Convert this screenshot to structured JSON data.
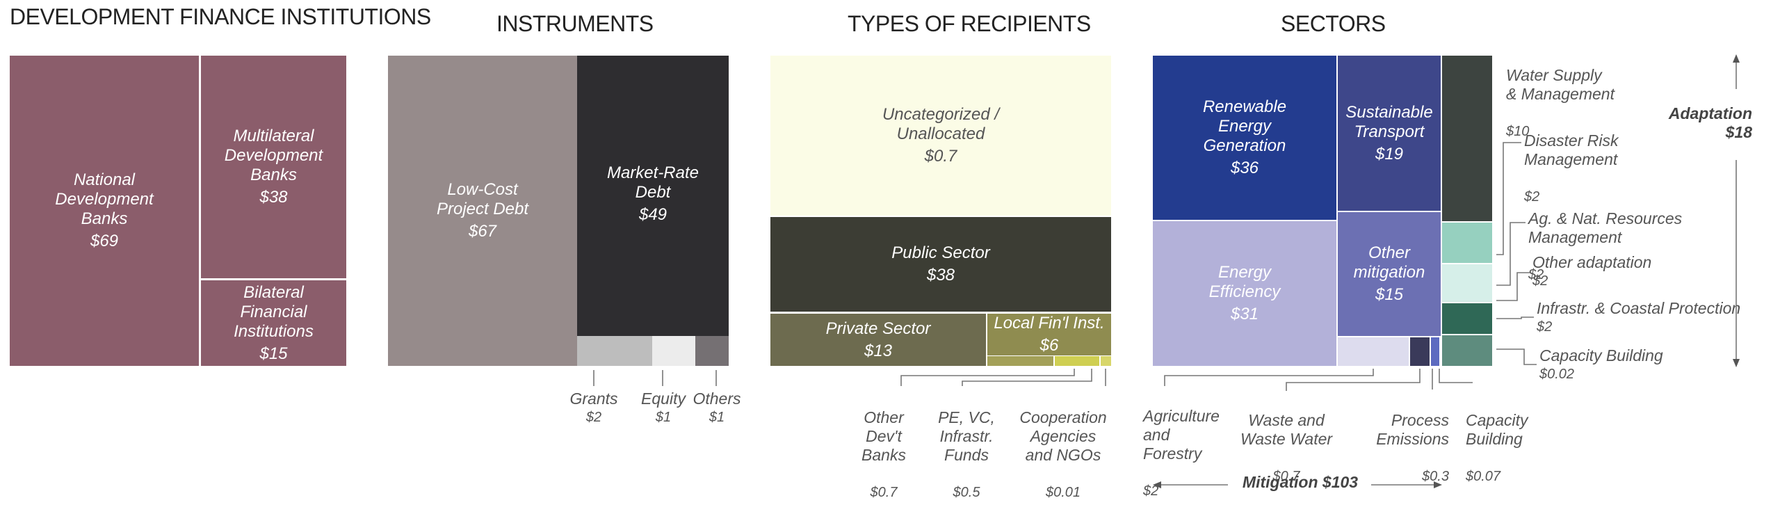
{
  "chart_data": [
    {
      "type": "treemap",
      "title": "DEVELOPMENT FINANCE INSTITUTIONS",
      "items": [
        {
          "name": "National Development Banks",
          "value": 69,
          "label": "$69"
        },
        {
          "name": "Multilateral Development Banks",
          "value": 38,
          "label": "$38"
        },
        {
          "name": "Bilateral Financial Institutions",
          "value": 15,
          "label": "$15"
        }
      ]
    },
    {
      "type": "treemap",
      "title": "INSTRUMENTS",
      "items": [
        {
          "name": "Low-Cost Project Debt",
          "value": 67,
          "label": "$67"
        },
        {
          "name": "Market-Rate Debt",
          "value": 49,
          "label": "$49"
        },
        {
          "name": "Grants",
          "value": 2,
          "label": "$2"
        },
        {
          "name": "Equity",
          "value": 1,
          "label": "$1"
        },
        {
          "name": "Others",
          "value": 1,
          "label": "$1"
        }
      ]
    },
    {
      "type": "treemap",
      "title": "TYPES OF RECIPIENTS",
      "items": [
        {
          "name": "Uncategorized / Unallocated",
          "value": 0.7,
          "label": "$0.7"
        },
        {
          "name": "Public Sector",
          "value": 38,
          "label": "$38"
        },
        {
          "name": "Private Sector",
          "value": 13,
          "label": "$13"
        },
        {
          "name": "Local Fin'l Inst.",
          "value": 6,
          "label": "$6"
        },
        {
          "name": "Other Dev't Banks",
          "value": 0.7,
          "label": "$0.7"
        },
        {
          "name": "PE, VC, Infrastr. Funds",
          "value": 0.5,
          "label": "$0.5"
        },
        {
          "name": "Cooperation Agencies and NGOs",
          "value": 0.01,
          "label": "$0.01"
        }
      ]
    },
    {
      "type": "treemap",
      "title": "SECTORS",
      "groups": [
        {
          "name": "Mitigation",
          "label": "Mitigation $103",
          "value": 103
        },
        {
          "name": "Adaptation",
          "label": "Adaptation",
          "total_label": "$18",
          "value": 18
        }
      ],
      "items": [
        {
          "group": "Mitigation",
          "name": "Renewable Energy Generation",
          "value": 36,
          "label": "$36"
        },
        {
          "group": "Mitigation",
          "name": "Sustainable Transport",
          "value": 19,
          "label": "$19"
        },
        {
          "group": "Mitigation",
          "name": "Energy Efficiency",
          "value": 31,
          "label": "$31"
        },
        {
          "group": "Mitigation",
          "name": "Other mitigation",
          "value": 15,
          "label": "$15"
        },
        {
          "group": "Mitigation",
          "name": "Agriculture and Forestry",
          "value": 2,
          "label": "$2"
        },
        {
          "group": "Mitigation",
          "name": "Waste and Waste Water",
          "value": 0.7,
          "label": "$0.7"
        },
        {
          "group": "Mitigation",
          "name": "Process Emissions",
          "value": 0.3,
          "label": "$0.3"
        },
        {
          "group": "Mitigation",
          "name": "Capacity Building",
          "value": 0.07,
          "label": "$0.07"
        },
        {
          "group": "Adaptation",
          "name": "Water Supply & Management",
          "value": 10,
          "label": "$10"
        },
        {
          "group": "Adaptation",
          "name": "Disaster Risk Management",
          "value": 2,
          "label": "$2"
        },
        {
          "group": "Adaptation",
          "name": "Ag. & Nat. Resources Management",
          "value": 2,
          "label": "$2"
        },
        {
          "group": "Adaptation",
          "name": "Other adaptation",
          "value": 2,
          "label": "$2"
        },
        {
          "group": "Adaptation",
          "name": "Infrastr. & Coastal Protection",
          "value": 2,
          "label": "$2"
        },
        {
          "group": "Adaptation",
          "name": "Capacity Building",
          "value": 0.02,
          "label": "$0.02"
        }
      ]
    }
  ],
  "text": {
    "dfi": {
      "nat": "National\nDevelopment\nBanks",
      "multi": "Multilateral\nDevelopment\nBanks",
      "bil": "Bilateral\nFinancial\nInstitutions"
    },
    "ins": {
      "lowcost": "Low-Cost\nProject Debt",
      "market": "Market-Rate\nDebt"
    },
    "rec": {
      "uncat": "Uncategorized /\nUnallocated",
      "otherdev": "Other\nDev't\nBanks",
      "pevc": "PE, VC,\nInfrastr.\nFunds",
      "coop": "Cooperation\nAgencies\nand NGOs"
    },
    "sec": {
      "ren": "Renewable\nEnergy\nGeneration",
      "trans": "Sustainable\nTransport",
      "eff": "Energy\nEfficiency",
      "othmit": "Other\nmitigation",
      "agri": "Agriculture\nand\nForestry",
      "waste": "Waste and\nWaste Water",
      "proc": "Process\nEmissions",
      "capmit": "Capacity\nBuilding",
      "water": "Water Supply\n& Management",
      "disaster": "Disaster Risk\nManagement",
      "agnat": "Ag. & Nat. Resources\nManagement",
      "othad": "Other adaptation",
      "infra": "Infrastr. & Coastal Protection",
      "capad": "Capacity Building"
    }
  },
  "colors": {
    "dfi": "#8b5d6b",
    "ins_low": "#968b8b",
    "ins_market": "#2e2d30",
    "ins_grants": "#bdbdbd",
    "ins_equity": "#ececec",
    "ins_others": "#757073",
    "rec_uncat": "#fbfce6",
    "rec_public": "#3c3d34",
    "rec_private": "#6d6b4f",
    "rec_local": "#8f8c50",
    "rec_small1": "#a3a058",
    "rec_small2": "#cfcf52",
    "rec_small3": "#d8d66a",
    "sec_ren": "#233c8f",
    "sec_trans": "#3e478a",
    "sec_eff": "#b3b1d9",
    "sec_othmit": "#6c70b3",
    "sec_agri": "#dddcee",
    "sec_proc": "#3a3a5a",
    "sec_cap": "#5d6bc0",
    "sec_water": "#3d4440",
    "sec_dis": "#96d0bf",
    "sec_ag": "#d6efe9",
    "sec_othad": "#d3ebe4",
    "sec_infra": "#2f6856",
    "sec_capad": "#5e8c7e"
  }
}
